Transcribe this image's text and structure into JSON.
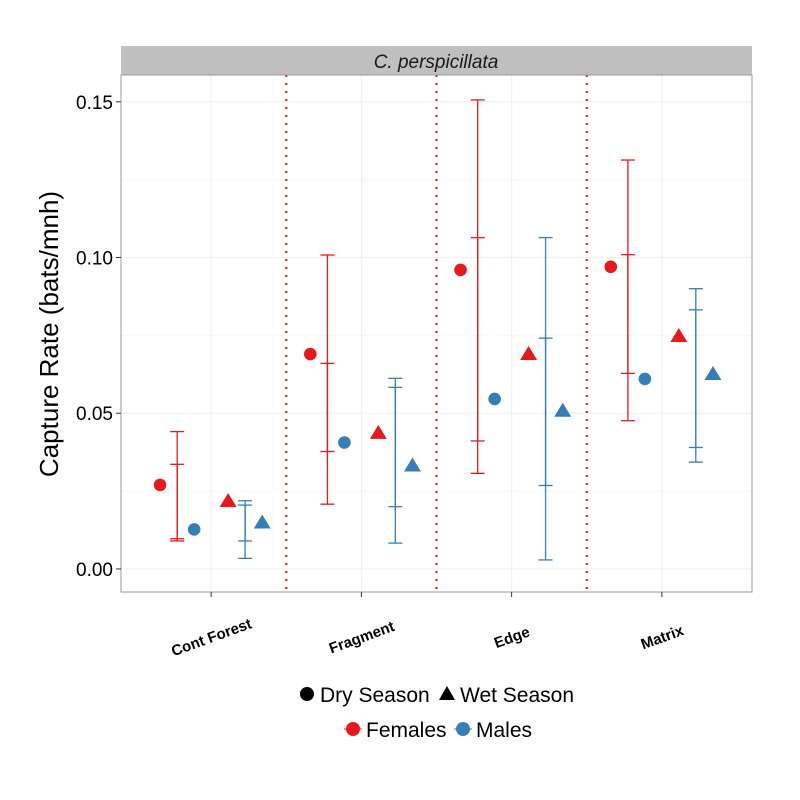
{
  "chart_data": {
    "type": "scatter",
    "strip_title": "C. perspicillata",
    "ylabel": "Capture Rate (bats/mnh)",
    "xlabel": "",
    "categories": [
      "Cont Forest",
      "Fragment",
      "Edge",
      "Matrix"
    ],
    "ylim": [
      -0.0074,
      0.1586
    ],
    "yticks": [
      0.0,
      0.05,
      0.1,
      0.15
    ],
    "ytick_labels": [
      "0.00",
      "0.05",
      "0.10",
      "0.15"
    ],
    "grid": true,
    "category_dividers": "dotted red vertical lines between categories",
    "colors": {
      "Females": "#e41a1c",
      "Males": "#377eb8",
      "divider": "#e41a1c"
    },
    "series": [
      {
        "sex": "Females",
        "season": "Dry Season",
        "shape": "circle",
        "values": [
          0.027,
          0.069,
          0.096,
          0.097
        ]
      },
      {
        "sex": "Males",
        "season": "Dry Season",
        "shape": "circle",
        "values": [
          0.0127,
          0.0406,
          0.0546,
          0.061
        ]
      },
      {
        "sex": "Females",
        "season": "Wet Season",
        "shape": "triangle",
        "values": [
          0.0218,
          0.0437,
          0.069,
          0.0748
        ]
      },
      {
        "sex": "Males",
        "season": "Wet Season",
        "shape": "triangle",
        "values": [
          0.0149,
          0.0332,
          0.0508,
          0.0626
        ]
      }
    ],
    "errorbars": [
      {
        "sex": "Females",
        "intervals": [
          [
            [
              0.009,
              0.0441
            ],
            [
              0.0097,
              0.0336
            ]
          ],
          [
            [
              0.0208,
              0.1008
            ],
            [
              0.0377,
              0.066
            ]
          ],
          [
            [
              0.0307,
              0.1506
            ],
            [
              0.0411,
              0.1064
            ]
          ],
          [
            [
              0.0476,
              0.1313
            ],
            [
              0.0628,
              0.1009
            ]
          ]
        ]
      },
      {
        "sex": "Males",
        "intervals": [
          [
            [
              0.0034,
              0.0219
            ],
            [
              0.009,
              0.0205
            ]
          ],
          [
            [
              0.0083,
              0.0612
            ],
            [
              0.02,
              0.0583
            ]
          ],
          [
            [
              0.0029,
              0.1064
            ],
            [
              0.0268,
              0.0741
            ]
          ],
          [
            [
              0.0343,
              0.09
            ],
            [
              0.039,
              0.0832
            ]
          ]
        ]
      }
    ],
    "legend": {
      "placement": "bottom",
      "shape_entries": [
        "Dry Season",
        "Wet Season"
      ],
      "color_entries": [
        "Females",
        "Males"
      ]
    }
  }
}
